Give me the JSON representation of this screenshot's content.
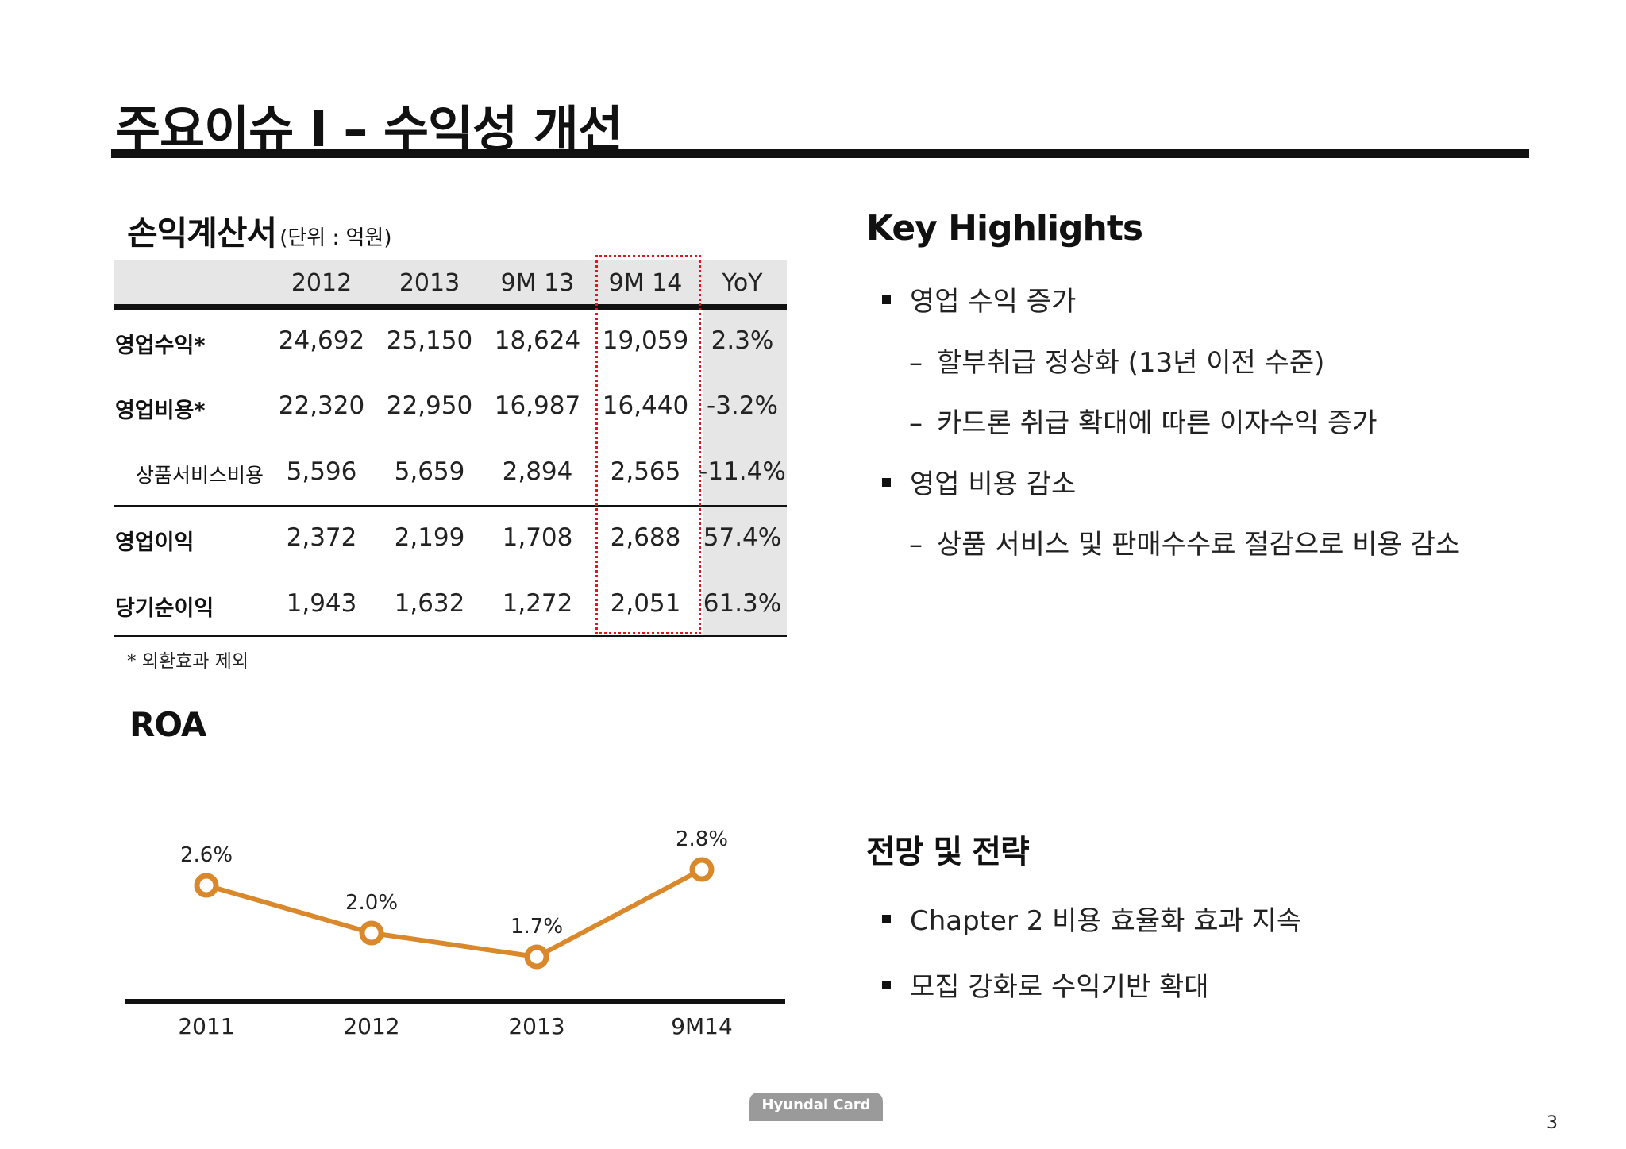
{
  "title": "주요이슈 I – 수익성 개선",
  "income_statement": {
    "heading": "손익계산서",
    "unit": "(단위 : 억원)",
    "columns": [
      "2012",
      "2013",
      "9M 13",
      "9M 14",
      "YoY"
    ],
    "rows": [
      {
        "label": "영업수익*",
        "values": [
          "24,692",
          "25,150",
          "18,624",
          "19,059",
          "2.3%"
        ]
      },
      {
        "label": "영업비용*",
        "values": [
          "22,320",
          "22,950",
          "16,987",
          "16,440",
          "-3.2%"
        ]
      },
      {
        "label": "상품서비스비용",
        "values": [
          "5,596",
          "5,659",
          "2,894",
          "2,565",
          "-11.4%"
        ]
      },
      {
        "label": "영업이익",
        "values": [
          "2,372",
          "2,199",
          "1,708",
          "2,688",
          "57.4%"
        ]
      },
      {
        "label": "당기순이익",
        "values": [
          "1,943",
          "1,632",
          "1,272",
          "2,051",
          "61.3%"
        ]
      }
    ],
    "footnote": "* 외환효과 제외"
  },
  "roa": {
    "heading": "ROA",
    "line_color": "#d9892b"
  },
  "chart_data": {
    "type": "line",
    "title": "ROA",
    "categories": [
      "2011",
      "2012",
      "2013",
      "9M14"
    ],
    "values": [
      2.6,
      2.0,
      1.7,
      2.8
    ],
    "data_labels": [
      "2.6%",
      "2.0%",
      "1.7%",
      "2.8%"
    ],
    "ylim": [
      0,
      3.2
    ],
    "grid": false
  },
  "highlights": {
    "heading": "Key Highlights",
    "items": [
      {
        "text": "영업 수익 증가",
        "subs": [
          "할부취급 정상화 (13년 이전 수준)",
          "카드론 취급 확대에 따른 이자수익 증가"
        ]
      },
      {
        "text": "영업 비용 감소",
        "subs": [
          "상품 서비스 및 판매수수료 절감으로 비용 감소"
        ]
      }
    ]
  },
  "strategy": {
    "heading": "전망 및 전략",
    "items": [
      "Chapter 2 비용 효율화 효과 지속",
      "모집 강화로 수익기반 확대"
    ]
  },
  "footer": {
    "logo": "Hyundai Card",
    "page": "3"
  }
}
